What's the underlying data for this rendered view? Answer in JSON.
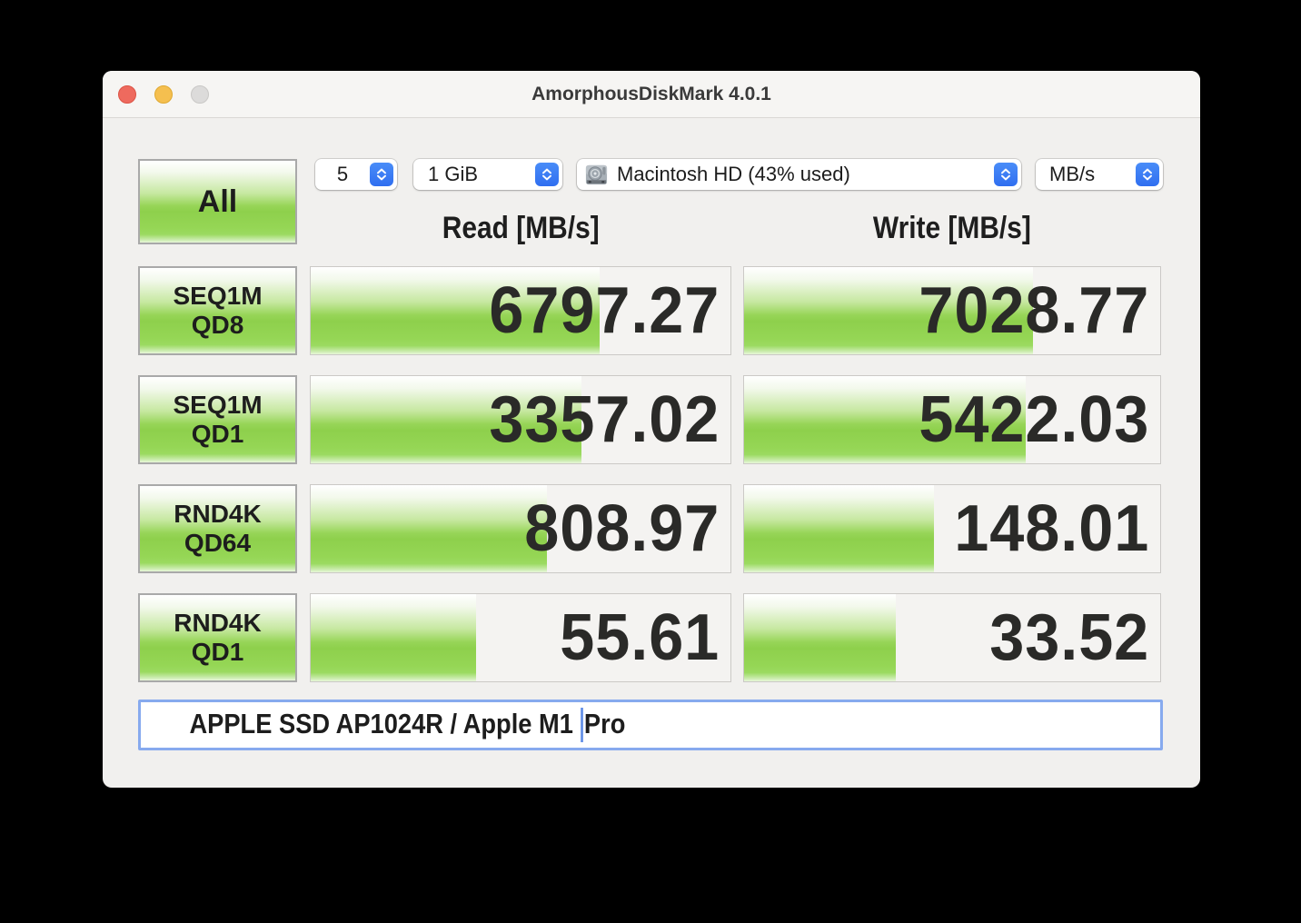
{
  "window": {
    "title": "AmorphousDiskMark 4.0.1"
  },
  "titlebar_buttons": {
    "close": "close",
    "minimize": "minimize",
    "zoom_disabled": "zoom"
  },
  "controls": {
    "test_count": "5",
    "test_size": "1 GiB",
    "volume": "Macintosh HD (43% used)",
    "unit": "MB/s"
  },
  "all_button_label": "All",
  "columns": {
    "read": "Read [MB/s]",
    "write": "Write [MB/s]"
  },
  "rows": [
    {
      "label_line1": "SEQ1M",
      "label_line2": "QD8",
      "read": "6797.27",
      "write": "7028.77",
      "read_bar": 68.8,
      "write_bar": 69.4
    },
    {
      "label_line1": "SEQ1M",
      "label_line2": "QD1",
      "read": "3357.02",
      "write": "5422.03",
      "read_bar": 64.4,
      "write_bar": 67.7
    },
    {
      "label_line1": "RND4K",
      "label_line2": "QD64",
      "read": "808.97",
      "write": "148.01",
      "read_bar": 56.2,
      "write_bar": 45.7
    },
    {
      "label_line1": "RND4K",
      "label_line2": "QD1",
      "read": "55.61",
      "write": "33.52",
      "read_bar": 39.4,
      "write_bar": 36.4
    }
  ],
  "footer": {
    "text_before_cursor": "APPLE SSD AP1024R / Apple M1 ",
    "text_after_cursor": "Pro"
  },
  "colors": {
    "bar_green": "#8ed04c",
    "accent_blue": "#3478f6",
    "window_bg": "#f1f0ee",
    "focus_ring": "#87aaee"
  }
}
